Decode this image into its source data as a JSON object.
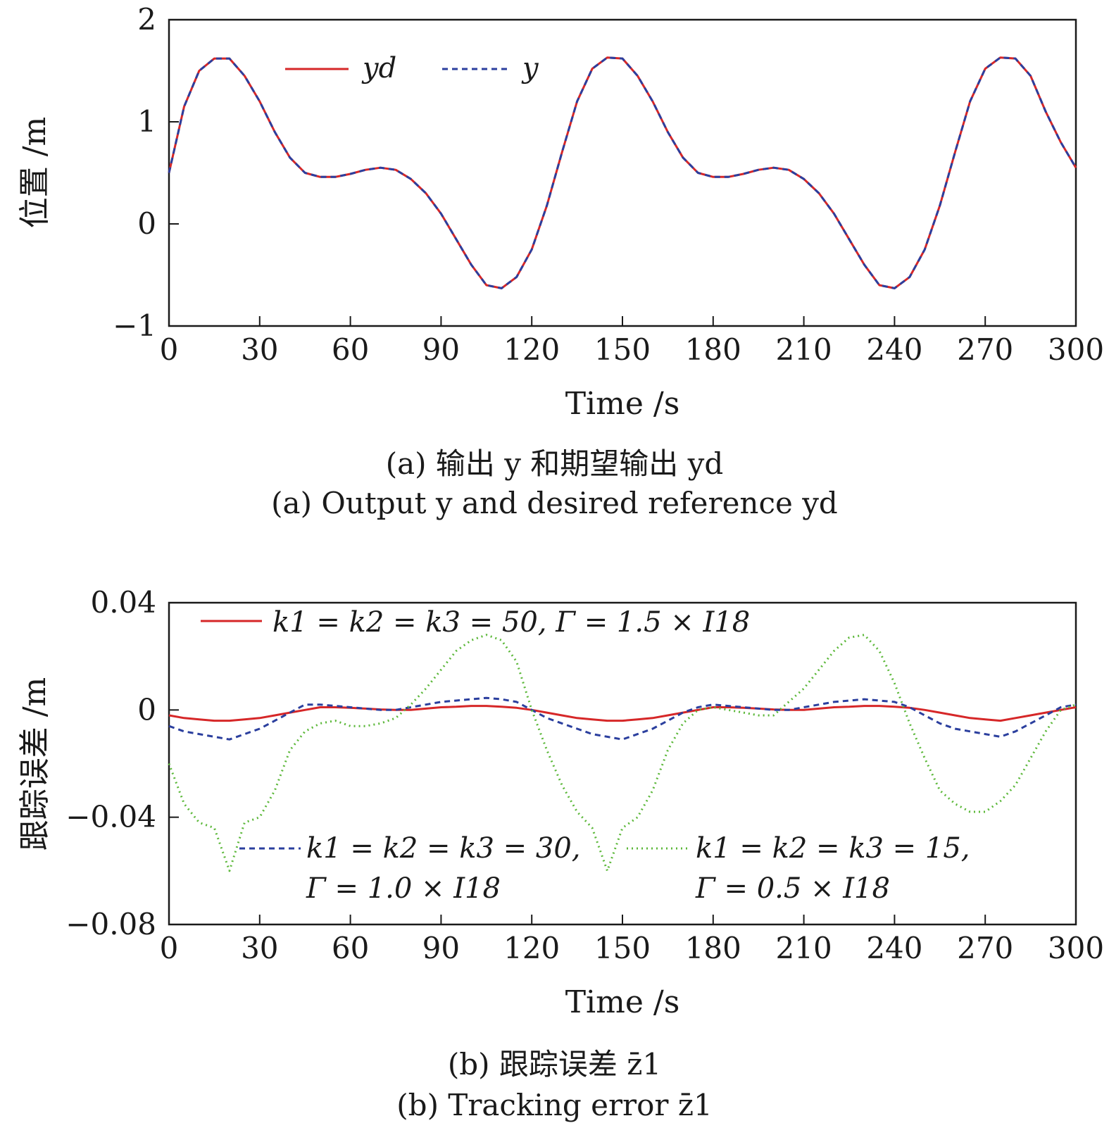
{
  "chart_data": [
    {
      "type": "line",
      "xlabel": "Time /s",
      "ylabel": "位置 /m",
      "xlim": [
        0,
        300
      ],
      "ylim": [
        -1,
        2
      ],
      "xticks": [
        0,
        30,
        60,
        90,
        120,
        150,
        180,
        210,
        240,
        270,
        300
      ],
      "yticks": [
        -1,
        0,
        1,
        2
      ],
      "ytick_labels": [
        "−1",
        "0",
        "1",
        "2"
      ],
      "grid": false,
      "legend_position": "top",
      "caption_cn": "(a) 输出 y 和期望输出 yd",
      "caption_en": "(a) Output y and desired reference yd",
      "x": [
        0,
        5,
        10,
        15,
        20,
        25,
        30,
        35,
        40,
        45,
        50,
        55,
        60,
        65,
        70,
        75,
        80,
        85,
        90,
        95,
        100,
        105,
        110,
        115,
        120,
        125,
        130,
        135,
        140,
        145,
        150,
        155,
        160,
        165,
        170,
        175,
        180,
        185,
        190,
        195,
        200,
        205,
        210,
        215,
        220,
        225,
        230,
        235,
        240,
        245,
        250,
        255,
        260,
        265,
        270,
        275,
        280,
        285,
        290,
        295,
        300
      ],
      "series": [
        {
          "name": "yd",
          "color": "#d62728",
          "dash": "solid",
          "values": [
            0.5,
            1.15,
            1.5,
            1.62,
            1.62,
            1.45,
            1.2,
            0.9,
            0.65,
            0.5,
            0.46,
            0.46,
            0.49,
            0.53,
            0.55,
            0.53,
            0.44,
            0.3,
            0.1,
            -0.15,
            -0.4,
            -0.6,
            -0.63,
            -0.52,
            -0.25,
            0.18,
            0.7,
            1.2,
            1.52,
            1.63,
            1.62,
            1.45,
            1.2,
            0.9,
            0.65,
            0.5,
            0.46,
            0.46,
            0.49,
            0.53,
            0.55,
            0.53,
            0.44,
            0.3,
            0.1,
            -0.15,
            -0.4,
            -0.6,
            -0.63,
            -0.52,
            -0.25,
            0.18,
            0.7,
            1.2,
            1.52,
            1.63,
            1.62,
            1.45,
            1.1,
            0.8,
            0.55
          ]
        },
        {
          "name": "y",
          "color": "#2b3f9e",
          "dash": "dashed",
          "values": [
            0.5,
            1.15,
            1.5,
            1.62,
            1.62,
            1.45,
            1.2,
            0.9,
            0.65,
            0.5,
            0.46,
            0.46,
            0.49,
            0.53,
            0.55,
            0.53,
            0.44,
            0.3,
            0.1,
            -0.15,
            -0.4,
            -0.6,
            -0.63,
            -0.52,
            -0.25,
            0.18,
            0.7,
            1.2,
            1.52,
            1.63,
            1.62,
            1.45,
            1.2,
            0.9,
            0.65,
            0.5,
            0.46,
            0.46,
            0.49,
            0.53,
            0.55,
            0.53,
            0.44,
            0.3,
            0.1,
            -0.15,
            -0.4,
            -0.6,
            -0.63,
            -0.52,
            -0.25,
            0.18,
            0.7,
            1.2,
            1.52,
            1.63,
            1.62,
            1.45,
            1.1,
            0.8,
            0.55
          ]
        }
      ]
    },
    {
      "type": "line",
      "xlabel": "Time /s",
      "ylabel": "跟踪误差 /m",
      "xlim": [
        0,
        300
      ],
      "ylim": [
        -0.08,
        0.04
      ],
      "xticks": [
        0,
        30,
        60,
        90,
        120,
        150,
        180,
        210,
        240,
        270,
        300
      ],
      "yticks": [
        -0.08,
        -0.04,
        0,
        0.04
      ],
      "ytick_labels": [
        "−0.08",
        "−0.04",
        "0",
        "0.04"
      ],
      "grid": false,
      "caption_cn": "(b) 跟踪误差 z̄1",
      "caption_en": "(b) Tracking error z̄1",
      "x": [
        0,
        5,
        10,
        15,
        20,
        25,
        30,
        35,
        40,
        45,
        50,
        55,
        60,
        65,
        70,
        75,
        80,
        85,
        90,
        95,
        100,
        105,
        110,
        115,
        120,
        125,
        130,
        135,
        140,
        145,
        150,
        155,
        160,
        165,
        170,
        175,
        180,
        185,
        190,
        195,
        200,
        205,
        210,
        215,
        220,
        225,
        230,
        235,
        240,
        245,
        250,
        255,
        260,
        265,
        270,
        275,
        280,
        285,
        290,
        295,
        300
      ],
      "series": [
        {
          "name": "k1 = k2 = k3 = 50, Γ = 1.5 × I18",
          "color": "#d62728",
          "dash": "solid",
          "values": [
            -0.002,
            -0.003,
            -0.0035,
            -0.004,
            -0.004,
            -0.0035,
            -0.003,
            -0.002,
            -0.001,
            0.0,
            0.001,
            0.001,
            0.0008,
            0.0005,
            0.0002,
            0.0,
            0.0,
            0.0005,
            0.001,
            0.0012,
            0.0015,
            0.0015,
            0.0012,
            0.0008,
            0.0,
            -0.001,
            -0.002,
            -0.003,
            -0.0035,
            -0.004,
            -0.004,
            -0.0035,
            -0.003,
            -0.002,
            -0.001,
            0.0,
            0.001,
            0.001,
            0.0008,
            0.0005,
            0.0002,
            0.0,
            0.0,
            0.0005,
            0.001,
            0.0012,
            0.0015,
            0.0015,
            0.0012,
            0.0008,
            0.0,
            -0.001,
            -0.002,
            -0.003,
            -0.0035,
            -0.004,
            -0.003,
            -0.002,
            -0.001,
            0.0,
            0.001
          ]
        },
        {
          "name": "k1 = k2 = k3 = 30, Γ = 1.0 × I18",
          "color": "#2b3f9e",
          "dash": "dashed",
          "values": [
            -0.006,
            -0.008,
            -0.009,
            -0.01,
            -0.011,
            -0.009,
            -0.007,
            -0.004,
            -0.001,
            0.002,
            0.002,
            0.0015,
            0.001,
            0.0005,
            0.0,
            0.0,
            0.001,
            0.002,
            0.003,
            0.0035,
            0.004,
            0.0045,
            0.004,
            0.003,
            0.0,
            -0.003,
            -0.005,
            -0.007,
            -0.009,
            -0.01,
            -0.011,
            -0.009,
            -0.007,
            -0.004,
            -0.001,
            0.001,
            0.002,
            0.0015,
            0.001,
            0.0005,
            0.0,
            0.0,
            0.001,
            0.002,
            0.003,
            0.0035,
            0.004,
            0.0035,
            0.003,
            0.001,
            -0.002,
            -0.005,
            -0.007,
            -0.008,
            -0.009,
            -0.01,
            -0.008,
            -0.005,
            -0.002,
            0.001,
            0.002
          ]
        },
        {
          "name": "k1 = k2 = k3 = 15, Γ = 0.5 × I18",
          "color": "#5cb83a",
          "dash": "dotted",
          "values": [
            -0.02,
            -0.035,
            -0.042,
            -0.044,
            -0.06,
            -0.042,
            -0.04,
            -0.03,
            -0.015,
            -0.008,
            -0.005,
            -0.004,
            -0.006,
            -0.006,
            -0.005,
            -0.003,
            0.002,
            0.008,
            0.015,
            0.022,
            0.026,
            0.028,
            0.026,
            0.018,
            0.0,
            -0.015,
            -0.028,
            -0.038,
            -0.044,
            -0.06,
            -0.044,
            -0.04,
            -0.03,
            -0.015,
            -0.005,
            0.0,
            0.001,
            0.0,
            -0.001,
            -0.002,
            -0.002,
            0.003,
            0.008,
            0.015,
            0.022,
            0.027,
            0.028,
            0.022,
            0.01,
            -0.005,
            -0.018,
            -0.03,
            -0.035,
            -0.038,
            -0.038,
            -0.034,
            -0.028,
            -0.018,
            -0.008,
            0.0,
            0.002
          ]
        }
      ]
    }
  ],
  "legends": {
    "top": {
      "yd": "yd",
      "y": "y"
    },
    "bottom": {
      "red_line1": "k1 = k2 = k3 = 50, Γ = 1.5 × I18",
      "blue_line1": "k1 = k2 = k3 = 30,",
      "blue_line2": "Γ = 1.0 × I18",
      "green_line1": "k1 = k2 = k3 = 15,",
      "green_line2": "Γ = 0.5 × I18"
    }
  }
}
